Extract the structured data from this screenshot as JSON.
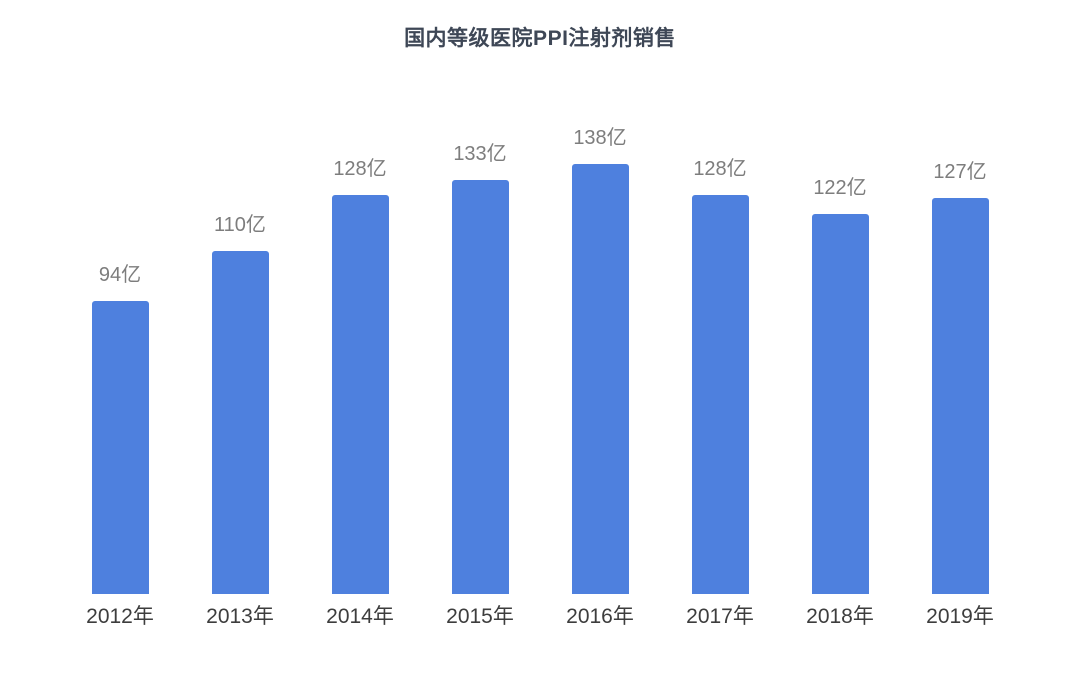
{
  "chart": {
    "title": "国内等级医院PPI注射剂销售"
  },
  "chart_data": {
    "type": "bar",
    "title": "国内等级医院PPI注射剂销售",
    "categories": [
      "2012年",
      "2013年",
      "2014年",
      "2015年",
      "2016年",
      "2017年",
      "2018年",
      "2019年"
    ],
    "values": [
      94,
      110,
      128,
      133,
      138,
      128,
      122,
      127
    ],
    "labels": [
      "94亿",
      "110亿",
      "128亿",
      "133亿",
      "138亿",
      "128亿",
      "122亿",
      "127亿"
    ],
    "unit": "亿",
    "xlabel": "",
    "ylabel": "",
    "ylim": [
      0,
      150
    ],
    "grid": false,
    "legend_position": "none",
    "colors": {
      "bar": "#4e80de",
      "value_label": "#7d7d7d",
      "axis_label": "#3d3d3d",
      "title": "#3e4756",
      "background": "#ffffff"
    }
  }
}
